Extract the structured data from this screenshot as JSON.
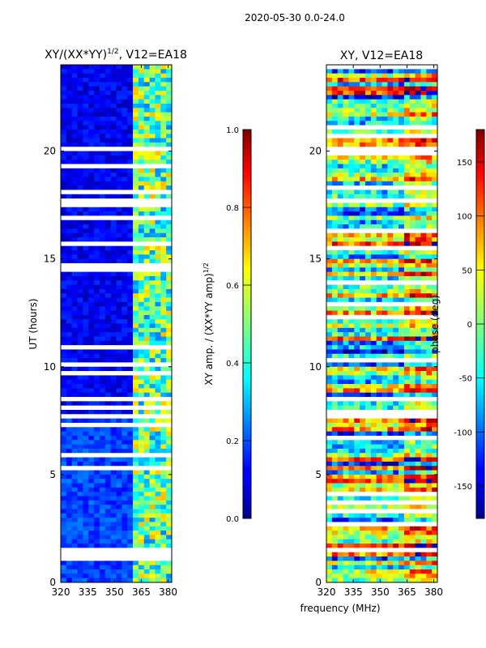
{
  "suptitle": "2020-05-30 0.0-24.0",
  "chart_data": [
    {
      "type": "heatmap",
      "title_text": "XY/(XX*YY)",
      "title_sup": "1/2",
      "title_rest": ", V12=EA18",
      "xlabel": "",
      "ylabel": "UT (hours)",
      "xlim": [
        320,
        382
      ],
      "ylim": [
        0,
        24
      ],
      "xticks": [
        320,
        335,
        350,
        365,
        380
      ],
      "yticks": [
        0,
        5,
        10,
        15,
        20
      ],
      "colorbar": {
        "label_text": "XY amp. / (XX*YY amp)",
        "label_sup": "1/2",
        "range": [
          0.0,
          1.0
        ],
        "ticks": [
          "0.0",
          "0.2",
          "0.4",
          "0.6",
          "0.8",
          "1.0"
        ],
        "colormap": "jet"
      }
    },
    {
      "type": "heatmap",
      "title_text": "XY, V12=EA18",
      "xlabel": "frequency (MHz)",
      "ylabel": "",
      "xlim": [
        320,
        382
      ],
      "ylim": [
        0,
        24
      ],
      "xticks": [
        320,
        335,
        350,
        365,
        380
      ],
      "yticks": [
        0,
        5,
        10,
        15,
        20
      ],
      "colorbar": {
        "label_text": "phase (deg)",
        "range": [
          -180,
          180
        ],
        "ticks": [
          "-150",
          "-100",
          "-50",
          "0",
          "50",
          "100",
          "150"
        ],
        "tick_values": [
          -150,
          -100,
          -50,
          0,
          50,
          100,
          150
        ],
        "colormap": "jet"
      }
    }
  ]
}
